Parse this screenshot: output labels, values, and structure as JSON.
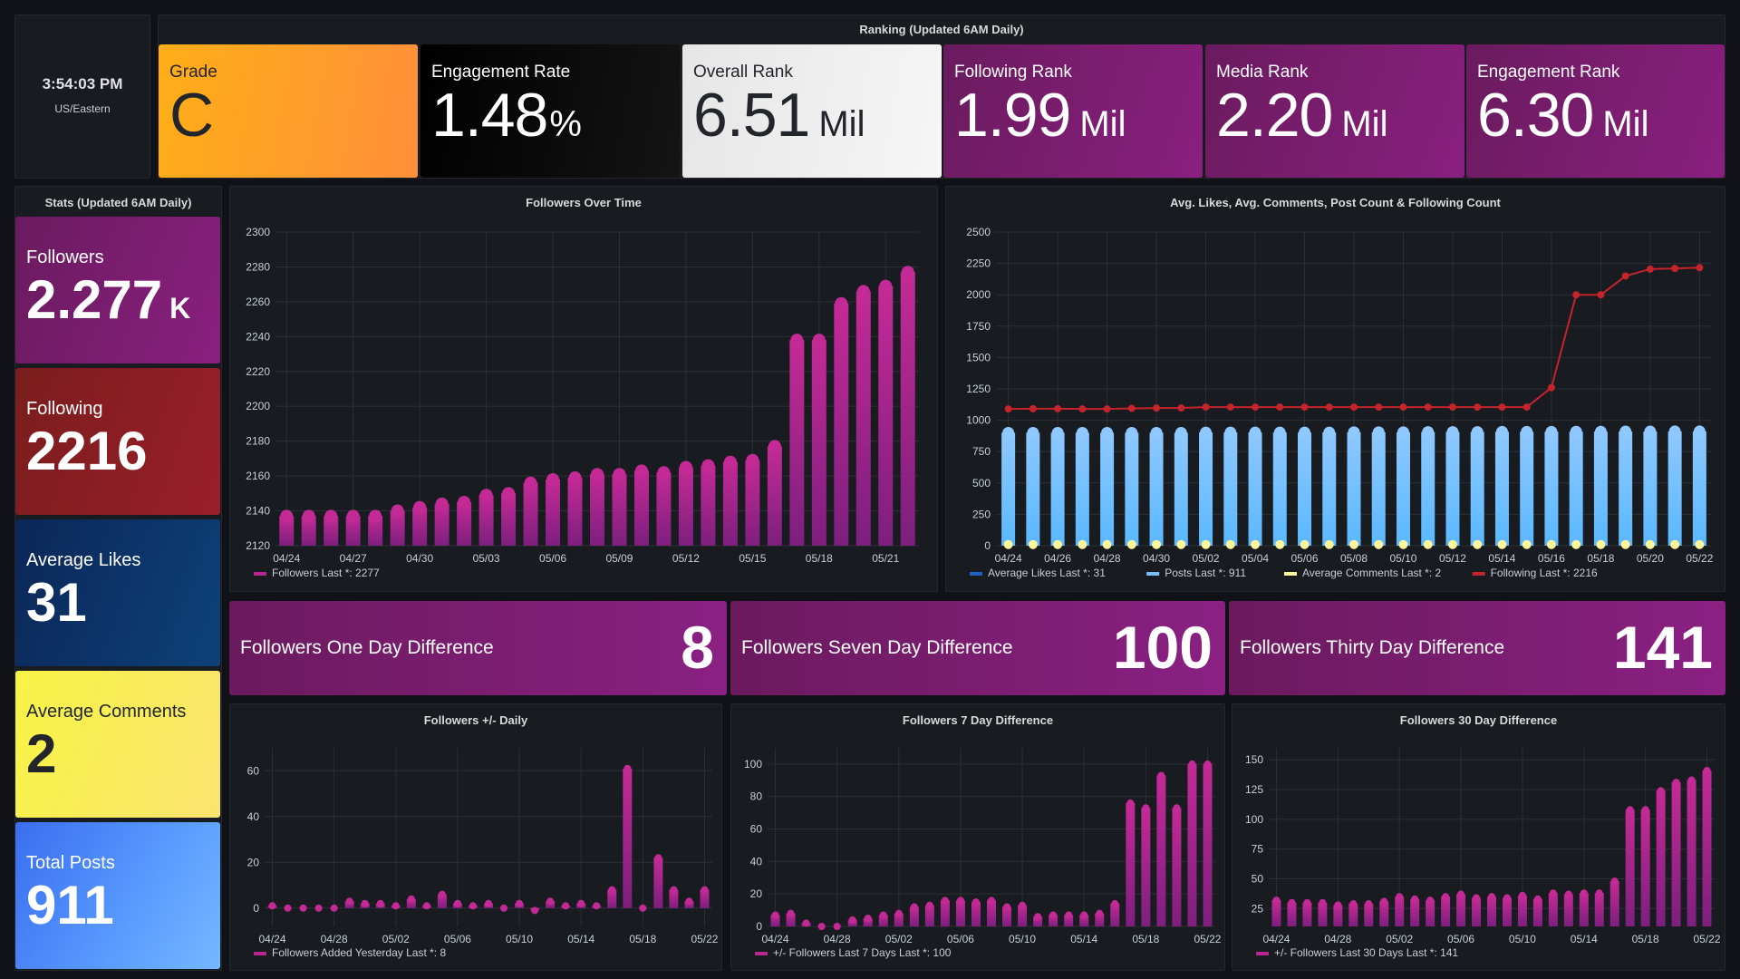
{
  "clock": {
    "time": "3:54:03 PM",
    "timezone": "US/Eastern"
  },
  "ranking": {
    "title": "Ranking (Updated 6AM Daily)",
    "tiles": [
      {
        "label": "Grade",
        "value": "C",
        "unit": ""
      },
      {
        "label": "Engagement Rate",
        "value": "1.48",
        "unit": "%"
      },
      {
        "label": "Overall Rank",
        "value": "6.51",
        "unit": "Mil"
      },
      {
        "label": "Following Rank",
        "value": "1.99",
        "unit": "Mil"
      },
      {
        "label": "Media Rank",
        "value": "2.20",
        "unit": "Mil"
      },
      {
        "label": "Engagement Rank",
        "value": "6.30",
        "unit": "Mil"
      }
    ]
  },
  "stats": {
    "title": "Stats (Updated 6AM Daily)",
    "tiles": [
      {
        "label": "Followers",
        "value": "2.277",
        "unit": "K"
      },
      {
        "label": "Following",
        "value": "2216",
        "unit": ""
      },
      {
        "label": "Average Likes",
        "value": "31",
        "unit": ""
      },
      {
        "label": "Average Comments",
        "value": "2",
        "unit": ""
      },
      {
        "label": "Total Posts",
        "value": "911",
        "unit": ""
      }
    ]
  },
  "differences": [
    {
      "label": "Followers One Day Difference",
      "value": "8"
    },
    {
      "label": "Followers Seven Day Difference",
      "value": "100"
    },
    {
      "label": "Followers Thirty Day Difference",
      "value": "141"
    }
  ],
  "colors": {
    "purple": "#b8278f",
    "posts": "#73bfff",
    "following": "#c4242b",
    "comments": "#fff59a",
    "likes": "#1f60c4",
    "orange": "#ff9830",
    "grid": "#2c2f36"
  },
  "chart_data": [
    {
      "id": "followers-over-time",
      "type": "bar",
      "title": "Followers Over Time",
      "x": [
        "04/24",
        "04/25",
        "04/26",
        "04/27",
        "04/28",
        "04/29",
        "04/30",
        "05/01",
        "05/02",
        "05/03",
        "05/04",
        "05/05",
        "05/06",
        "05/07",
        "05/08",
        "05/09",
        "05/10",
        "05/11",
        "05/12",
        "05/13",
        "05/14",
        "05/15",
        "05/16",
        "05/17",
        "05/18",
        "05/19",
        "05/20",
        "05/21",
        "05/22"
      ],
      "xticks": [
        "04/24",
        "04/27",
        "04/30",
        "05/03",
        "05/06",
        "05/09",
        "05/12",
        "05/15",
        "05/18",
        "05/21"
      ],
      "series": [
        {
          "name": "Followers",
          "legend": "Followers   Last *: 2277",
          "color": "#b8278f",
          "values": [
            2137,
            2137,
            2137,
            2137,
            2137,
            2140,
            2142,
            2144,
            2145,
            2149,
            2150,
            2156,
            2158,
            2159,
            2161,
            2161,
            2163,
            2162,
            2165,
            2166,
            2168,
            2169,
            2177,
            2238,
            2238,
            2259,
            2266,
            2269,
            2277
          ]
        }
      ],
      "yticks": [
        2120,
        2140,
        2160,
        2180,
        2200,
        2220,
        2240,
        2260,
        2280,
        2300
      ],
      "ylim": [
        2120,
        2300
      ],
      "legend": "bottom-left"
    },
    {
      "id": "likes-comments-posts-following",
      "type": "bar",
      "title": "Avg. Likes, Avg. Comments, Post Count & Following Count",
      "x": [
        "04/24",
        "04/25",
        "04/26",
        "04/27",
        "04/28",
        "04/29",
        "04/30",
        "05/01",
        "05/02",
        "05/03",
        "05/04",
        "05/05",
        "05/06",
        "05/07",
        "05/08",
        "05/09",
        "05/10",
        "05/11",
        "05/12",
        "05/13",
        "05/14",
        "05/15",
        "05/16",
        "05/17",
        "05/18",
        "05/19",
        "05/20",
        "05/21",
        "05/22"
      ],
      "xticks": [
        "04/24",
        "04/26",
        "04/28",
        "04/30",
        "05/02",
        "05/04",
        "05/06",
        "05/08",
        "05/10",
        "05/12",
        "05/14",
        "05/16",
        "05/18",
        "05/20",
        "05/22"
      ],
      "series": [
        {
          "name": "Average Likes",
          "legend": "Average Likes   Last *: 31",
          "color": "#1f60c4",
          "kind": "bar",
          "values": [
            30,
            30,
            30,
            30,
            30,
            30,
            30,
            30,
            30,
            30,
            30,
            30,
            30,
            30,
            30,
            30,
            30,
            30,
            31,
            31,
            31,
            31,
            31,
            31,
            31,
            31,
            31,
            31,
            31
          ]
        },
        {
          "name": "Posts",
          "legend": "Posts   Last *: 911",
          "color": "#73bfff",
          "kind": "bar",
          "values": [
            900,
            900,
            900,
            900,
            900,
            900,
            900,
            900,
            902,
            902,
            902,
            902,
            902,
            902,
            904,
            904,
            904,
            906,
            906,
            906,
            908,
            908,
            908,
            909,
            909,
            910,
            910,
            911,
            911
          ]
        },
        {
          "name": "Average Comments",
          "legend": "Average Comments   Last *: 2",
          "color": "#fff59a",
          "kind": "point",
          "values": [
            2,
            2,
            2,
            2,
            2,
            2,
            2,
            2,
            2,
            2,
            2,
            2,
            2,
            2,
            2,
            2,
            2,
            2,
            2,
            2,
            2,
            2,
            2,
            2,
            2,
            2,
            2,
            2,
            2
          ]
        },
        {
          "name": "Following",
          "legend": "Following   Last *: 2216",
          "color": "#c4242b",
          "kind": "line",
          "values": [
            1090,
            1092,
            1092,
            1090,
            1090,
            1095,
            1097,
            1098,
            1105,
            1105,
            1105,
            1105,
            1105,
            1105,
            1105,
            1105,
            1105,
            1105,
            1105,
            1105,
            1105,
            1105,
            1260,
            2000,
            2000,
            2150,
            2205,
            2210,
            2216
          ]
        }
      ],
      "yticks": [
        0,
        250,
        500,
        750,
        1000,
        1250,
        1500,
        1750,
        2000,
        2250,
        2500
      ],
      "ylim": [
        0,
        2500
      ],
      "legend": "bottom-left"
    },
    {
      "id": "followers-daily",
      "type": "bar",
      "title": "Followers +/- Daily",
      "x": [
        "04/24",
        "04/25",
        "04/26",
        "04/27",
        "04/28",
        "04/29",
        "04/30",
        "05/01",
        "05/02",
        "05/03",
        "05/04",
        "05/05",
        "05/06",
        "05/07",
        "05/08",
        "05/09",
        "05/10",
        "05/11",
        "05/12",
        "05/13",
        "05/14",
        "05/15",
        "05/16",
        "05/17",
        "05/18",
        "05/19",
        "05/20",
        "05/21",
        "05/22"
      ],
      "xticks": [
        "04/24",
        "04/28",
        "05/02",
        "05/06",
        "05/10",
        "05/14",
        "05/18",
        "05/22"
      ],
      "series": [
        {
          "name": "Followers Added Yesterday",
          "legend": "Followers Added Yesterday   Last *: 8",
          "color": "#b8278f",
          "values": [
            1,
            0,
            0,
            0,
            0,
            3,
            2,
            2,
            1,
            4,
            1,
            6,
            2,
            1,
            2,
            0,
            2,
            -1,
            3,
            1,
            2,
            1,
            8,
            61,
            0,
            22,
            8,
            3,
            8
          ]
        }
      ],
      "yticks": [
        0,
        20,
        40,
        60
      ],
      "ylim": [
        -8,
        70
      ],
      "legend": "bottom-left"
    },
    {
      "id": "followers-7-day",
      "type": "bar",
      "title": "Followers 7 Day Difference",
      "x": [
        "04/24",
        "04/25",
        "04/26",
        "04/27",
        "04/28",
        "04/29",
        "04/30",
        "05/01",
        "05/02",
        "05/03",
        "05/04",
        "05/05",
        "05/06",
        "05/07",
        "05/08",
        "05/09",
        "05/10",
        "05/11",
        "05/12",
        "05/13",
        "05/14",
        "05/15",
        "05/16",
        "05/17",
        "05/18",
        "05/19",
        "05/20",
        "05/21",
        "05/22"
      ],
      "xticks": [
        "04/24",
        "04/28",
        "05/02",
        "05/06",
        "05/10",
        "05/14",
        "05/18",
        "05/22"
      ],
      "series": [
        {
          "name": "+/- Followers Last 7 Days",
          "legend": "+/- Followers Last 7 Days   Last *: 100",
          "color": "#b8278f",
          "values": [
            7,
            8,
            2,
            0,
            0,
            4,
            5,
            7,
            8,
            12,
            13,
            16,
            16,
            15,
            16,
            12,
            13,
            6,
            7,
            7,
            7,
            8,
            14,
            76,
            73,
            93,
            73,
            100,
            100
          ]
        }
      ],
      "yticks": [
        0,
        20,
        40,
        60,
        80,
        100
      ],
      "ylim": [
        0,
        110
      ],
      "legend": "bottom-left"
    },
    {
      "id": "followers-30-day",
      "type": "bar",
      "title": "Followers 30 Day Difference",
      "x": [
        "04/24",
        "04/25",
        "04/26",
        "04/27",
        "04/28",
        "04/29",
        "04/30",
        "05/01",
        "05/02",
        "05/03",
        "05/04",
        "05/05",
        "05/06",
        "05/07",
        "05/08",
        "05/09",
        "05/10",
        "05/11",
        "05/12",
        "05/13",
        "05/14",
        "05/15",
        "05/16",
        "05/17",
        "05/18",
        "05/19",
        "05/20",
        "05/21",
        "05/22"
      ],
      "xticks": [
        "04/24",
        "04/28",
        "05/02",
        "05/06",
        "05/10",
        "05/14",
        "05/18",
        "05/22"
      ],
      "series": [
        {
          "name": "+/- Followers Last 30 Days",
          "legend": "+/- Followers Last 30 Days   Last *: 141",
          "color": "#b8278f",
          "values": [
            32,
            30,
            30,
            30,
            28,
            29,
            29,
            31,
            35,
            33,
            32,
            35,
            37,
            34,
            35,
            34,
            36,
            33,
            38,
            37,
            38,
            38,
            48,
            108,
            108,
            124,
            131,
            133,
            141
          ]
        }
      ],
      "yticks": [
        25,
        50,
        75,
        100,
        125,
        150
      ],
      "ylim": [
        10,
        160
      ],
      "legend": "bottom-left"
    }
  ]
}
